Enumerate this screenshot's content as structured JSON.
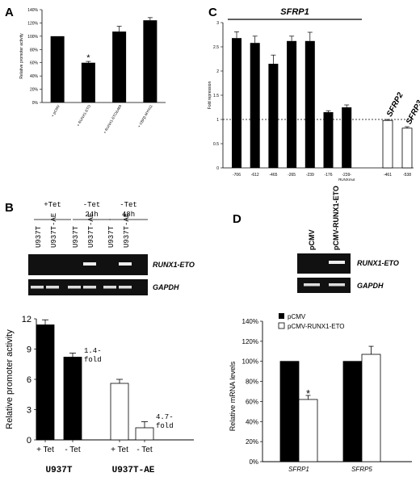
{
  "panels": {
    "A": "A",
    "B": "B",
    "C": "C",
    "D": "D"
  },
  "chart_data": [
    {
      "id": "A",
      "type": "bar",
      "ylabel": "Relative promoter activity",
      "ylim": [
        0,
        140
      ],
      "yticks": [
        "0%",
        "20%",
        "40%",
        "60%",
        "80%",
        "100%",
        "120%",
        "140%"
      ],
      "categories": [
        "+ pCMV",
        "+ RUNX1-ETO",
        "+ RUNX1-ETOΔ469",
        "+ CBFβ-MYH11"
      ],
      "values": [
        100,
        60,
        107,
        124
      ],
      "errors": [
        0,
        2,
        8,
        4
      ],
      "annotations": [
        "",
        "*",
        "",
        ""
      ]
    },
    {
      "id": "C",
      "type": "bar",
      "ylabel": "Fold repression",
      "ylim": [
        0,
        3
      ],
      "yticks": [
        "0",
        "0.5",
        "1",
        "1.5",
        "2",
        "2.5",
        "3"
      ],
      "group_label": "SFRP1",
      "categories": [
        "-706",
        "-612",
        "-465",
        "-265",
        "-239",
        "-176",
        "-239-"
      ],
      "cat_sublabel": "RUNXmut",
      "values": [
        2.68,
        2.58,
        2.15,
        2.62,
        2.62,
        1.15,
        1.25
      ],
      "errors": [
        0.13,
        0.14,
        0.18,
        0.1,
        0.18,
        0.03,
        0.05
      ],
      "extra_categories": [
        "-461",
        "-538"
      ],
      "extra_values": [
        0.98,
        0.82
      ],
      "extra_errors": [
        0.02,
        0.03
      ],
      "extra_labels": [
        "SFRP2",
        "SFRP3"
      ],
      "reference_line": 1
    },
    {
      "id": "B",
      "type": "bar",
      "ylabel": "Relative promoter activity",
      "ylim": [
        0,
        12
      ],
      "yticks": [
        "0",
        "3",
        "6",
        "9",
        "12"
      ],
      "groups": [
        "U937T",
        "U937T-AE"
      ],
      "categories": [
        "+ Tet",
        "- Tet",
        "+ Tet",
        "- Tet"
      ],
      "values": [
        11.4,
        8.2,
        5.6,
        1.2
      ],
      "errors": [
        0.5,
        0.4,
        0.4,
        0.6
      ],
      "fold_labels": [
        "1.4-",
        "fold",
        "4.7-",
        "fold"
      ]
    },
    {
      "id": "D",
      "type": "bar",
      "ylabel": "Relative mRNA levels",
      "ylim": [
        0,
        140
      ],
      "yticks": [
        "0%",
        "20%",
        "40%",
        "60%",
        "80%",
        "100%",
        "120%",
        "140%"
      ],
      "categories": [
        "SFRP1",
        "SFRP5"
      ],
      "series": [
        {
          "name": "pCMV",
          "values": [
            100,
            100
          ],
          "errors": [
            0,
            0
          ]
        },
        {
          "name": "pCMV-RUNX1-ETO",
          "values": [
            62,
            107
          ],
          "errors": [
            4,
            8
          ]
        }
      ],
      "annotations": [
        "*",
        ""
      ]
    }
  ],
  "gel_B": {
    "conditions": [
      "+Tet",
      "-Tet",
      "-Tet"
    ],
    "times": [
      "",
      "24h",
      "48h"
    ],
    "lanes": [
      "U937T",
      "U937T-AE",
      "U937T",
      "U937T-AE",
      "U937T",
      "U937T-AE"
    ],
    "bands": [
      "RUNX1-ETO",
      "GAPDH"
    ]
  },
  "gel_D": {
    "lanes": [
      "pCMV",
      "pCMV-RUNX1-ETO"
    ],
    "bands": [
      "RUNX1-ETO",
      "GAPDH"
    ]
  }
}
